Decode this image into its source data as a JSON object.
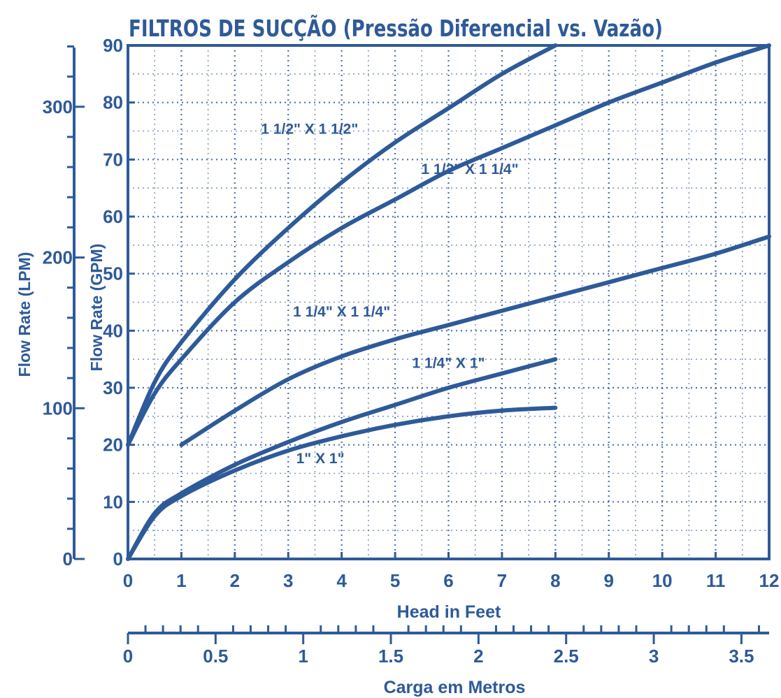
{
  "chart_data": {
    "type": "line",
    "title": "FILTROS DE SUCÇÃO (Pressão Diferencial vs. Vazão)",
    "xlabel": "Head in Feet",
    "x2label": "Carga em Metros",
    "ylabel": "Flow Rate (GPM)",
    "y2label": "Flow Rate (LPM)",
    "xlim": [
      0,
      12
    ],
    "ylim": [
      0,
      90
    ],
    "x2lim": [
      0,
      3.658
    ],
    "y2lim": [
      0,
      340.7
    ],
    "grid": true,
    "x_ticks": [
      "0",
      "1",
      "2",
      "3",
      "4",
      "5",
      "6",
      "7",
      "8",
      "9",
      "10",
      "11",
      "12"
    ],
    "y_ticks": [
      "0",
      "10",
      "20",
      "30",
      "40",
      "50",
      "60",
      "70",
      "80",
      "90"
    ],
    "x2_ticks": [
      {
        "value": 0,
        "label": "0"
      },
      {
        "value": 0.5,
        "label": "0.5"
      },
      {
        "value": 1,
        "label": "1"
      },
      {
        "value": 1.5,
        "label": "1.5"
      },
      {
        "value": 2,
        "label": "2"
      },
      {
        "value": 2.5,
        "label": "2.5"
      },
      {
        "value": 3,
        "label": "3"
      },
      {
        "value": 3.5,
        "label": "3.5"
      }
    ],
    "y2_ticks": [
      {
        "value": 0,
        "label": "0"
      },
      {
        "value": 100,
        "label": "100"
      },
      {
        "value": 200,
        "label": "200"
      },
      {
        "value": 300,
        "label": "300"
      }
    ],
    "series": [
      {
        "name": "1 1/2\" X 1 1/2\"",
        "x": [
          0,
          0.5,
          1,
          2,
          3,
          4,
          5,
          6,
          7,
          8
        ],
        "y": [
          20,
          31,
          38,
          49,
          58,
          66,
          73,
          79,
          85,
          90
        ],
        "label_pos": [
          3.4,
          74.5
        ]
      },
      {
        "name": "1 1/2\" X 1 1/4\"",
        "x": [
          0,
          0.5,
          1,
          2,
          3,
          4,
          5,
          6,
          7,
          8,
          9,
          10,
          11,
          12
        ],
        "y": [
          20,
          29,
          35,
          45,
          52,
          58,
          63,
          68,
          72,
          76,
          80,
          83.5,
          87,
          90
        ],
        "label_pos": [
          6.4,
          67.5
        ]
      },
      {
        "name": "1 1/4\" X 1 1/4\"",
        "x": [
          1,
          2,
          3,
          4,
          5,
          6,
          7,
          8,
          9,
          10,
          11,
          12
        ],
        "y": [
          20,
          26,
          31.5,
          35.5,
          38.5,
          41,
          43.5,
          46,
          48.5,
          51,
          53.5,
          56.5
        ],
        "label_pos": [
          4.0,
          42.5
        ]
      },
      {
        "name": "1 1/4\" X 1\"",
        "x": [
          0,
          0.5,
          1,
          2,
          3,
          4,
          5,
          6,
          7,
          8
        ],
        "y": [
          0,
          8,
          11.5,
          16.5,
          20.5,
          24,
          27,
          30,
          32.5,
          35
        ],
        "label_pos": [
          6.0,
          33.5
        ]
      },
      {
        "name": "1\" X 1\"",
        "x": [
          0,
          0.5,
          1,
          2,
          3,
          4,
          5,
          6,
          7,
          8
        ],
        "y": [
          0,
          7.5,
          11,
          15.5,
          19,
          21.5,
          23.5,
          25,
          26,
          26.5
        ],
        "label_pos": [
          3.6,
          16.8
        ]
      }
    ]
  }
}
